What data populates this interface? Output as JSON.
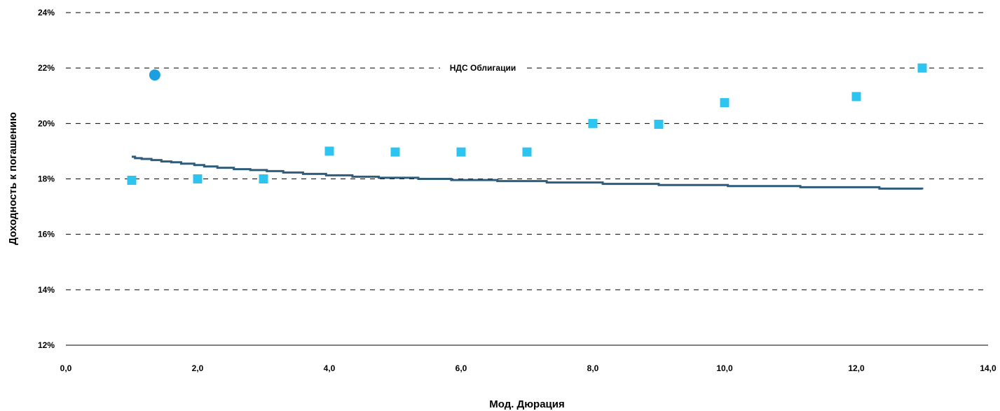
{
  "chart_data": {
    "type": "scatter",
    "title": "",
    "xlabel": "Мод. Дюрация",
    "ylabel": "Доходность к погашению",
    "xlim": [
      0,
      14
    ],
    "ylim": [
      12,
      24
    ],
    "x_ticks": [
      0,
      2,
      4,
      6,
      8,
      10,
      12,
      14
    ],
    "x_tick_labels": [
      "0,0",
      "2,0",
      "4,0",
      "6,0",
      "8,0",
      "10,0",
      "12,0",
      "14,0"
    ],
    "y_ticks": [
      12,
      14,
      16,
      18,
      20,
      22,
      24
    ],
    "y_tick_labels": [
      "12%",
      "14%",
      "16%",
      "18%",
      "20%",
      "22%",
      "24%"
    ],
    "grid": "horizontal dashed",
    "legend": "none",
    "annotation": "НДС Облигации",
    "series": [
      {
        "type": "scatter",
        "marker": "square",
        "color": "#2ec4f0",
        "points": [
          {
            "x": 1.0,
            "y": 17.95
          },
          {
            "x": 2.0,
            "y": 18.0
          },
          {
            "x": 3.0,
            "y": 18.0
          },
          {
            "x": 4.0,
            "y": 19.0
          },
          {
            "x": 5.0,
            "y": 18.97
          },
          {
            "x": 6.0,
            "y": 18.97
          },
          {
            "x": 7.0,
            "y": 18.97
          },
          {
            "x": 8.0,
            "y": 20.0
          },
          {
            "x": 9.0,
            "y": 19.97
          },
          {
            "x": 10.0,
            "y": 20.75
          },
          {
            "x": 12.0,
            "y": 20.97
          },
          {
            "x": 13.0,
            "y": 22.0
          }
        ]
      },
      {
        "type": "scatter",
        "marker": "circle",
        "color": "#1aa0e0",
        "points": [
          {
            "x": 1.35,
            "y": 21.75
          }
        ]
      },
      {
        "type": "line",
        "shape": "step",
        "color": "#2e5c7a",
        "points": [
          {
            "x": 1.0,
            "y": 18.8
          },
          {
            "x": 1.05,
            "y": 18.75
          },
          {
            "x": 1.15,
            "y": 18.72
          },
          {
            "x": 1.3,
            "y": 18.68
          },
          {
            "x": 1.45,
            "y": 18.63
          },
          {
            "x": 1.6,
            "y": 18.6
          },
          {
            "x": 1.75,
            "y": 18.55
          },
          {
            "x": 1.95,
            "y": 18.5
          },
          {
            "x": 2.1,
            "y": 18.45
          },
          {
            "x": 2.3,
            "y": 18.4
          },
          {
            "x": 2.55,
            "y": 18.35
          },
          {
            "x": 2.8,
            "y": 18.32
          },
          {
            "x": 3.05,
            "y": 18.28
          },
          {
            "x": 3.3,
            "y": 18.23
          },
          {
            "x": 3.6,
            "y": 18.18
          },
          {
            "x": 3.95,
            "y": 18.13
          },
          {
            "x": 4.35,
            "y": 18.08
          },
          {
            "x": 4.75,
            "y": 18.04
          },
          {
            "x": 5.35,
            "y": 18.0
          },
          {
            "x": 5.85,
            "y": 17.96
          },
          {
            "x": 6.55,
            "y": 17.92
          },
          {
            "x": 7.3,
            "y": 17.87
          },
          {
            "x": 8.15,
            "y": 17.82
          },
          {
            "x": 9.0,
            "y": 17.78
          },
          {
            "x": 10.05,
            "y": 17.74
          },
          {
            "x": 11.15,
            "y": 17.7
          },
          {
            "x": 12.35,
            "y": 17.65
          },
          {
            "x": 13.0,
            "y": 17.62
          }
        ]
      }
    ]
  }
}
